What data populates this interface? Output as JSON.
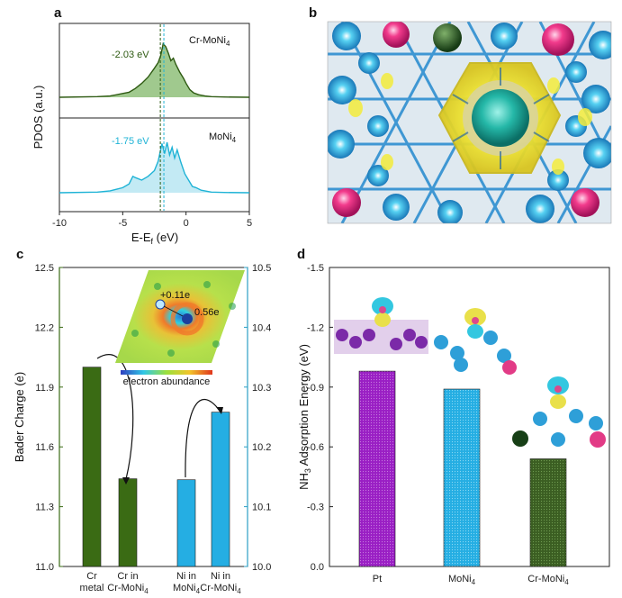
{
  "panels": {
    "a": "a",
    "b": "b",
    "c": "c",
    "d": "d"
  },
  "colors": {
    "green_dark": "#2e5a12",
    "green_fill": "#8fc07a",
    "cyan": "#1fb3d6",
    "cyan_fill": "#b9e6f2",
    "olive": "#3a6b14",
    "purple": "#9a1fc4",
    "blue_bar": "#25aee3",
    "dark_green_bar": "#3b5e22",
    "axis_left_c": "#3a6b14",
    "axis_right_c": "#2b9fc4"
  },
  "panel_b": {
    "image_icon": "charge-density-isosurface-top-view"
  },
  "chart_data": [
    {
      "panel": "a",
      "type": "area",
      "ylabel": "PDOS (a.u.)",
      "xlabel_main": "E-E",
      "xlabel_sub": "f",
      "xlabel_tail": " (eV)",
      "xlim": [
        -10,
        5
      ],
      "xticks": [
        "-10",
        "-5",
        "0",
        "5"
      ],
      "grid": false,
      "series": [
        {
          "name": "Cr-MoNi",
          "name_sub": "4",
          "d_band_center": "-2.03 eV",
          "d_band_value": -2.03,
          "x": [
            -10,
            -7,
            -6,
            -5,
            -4.5,
            -4,
            -3.5,
            -3,
            -2.5,
            -2.2,
            -2.0,
            -1.8,
            -1.6,
            -1.4,
            -1.2,
            -1.0,
            -0.8,
            -0.5,
            -0.2,
            0,
            0.3,
            0.6,
            1,
            1.5,
            2,
            3,
            5
          ],
          "y": [
            0.0,
            0.01,
            0.02,
            0.06,
            0.08,
            0.14,
            0.22,
            0.32,
            0.46,
            0.55,
            0.66,
            0.85,
            0.8,
            0.7,
            0.58,
            0.62,
            0.52,
            0.4,
            0.3,
            0.22,
            0.12,
            0.07,
            0.04,
            0.02,
            0.01,
            0.005,
            0.0
          ]
        },
        {
          "name": "MoNi",
          "name_sub": "4",
          "d_band_center": "-1.75 eV",
          "d_band_value": -1.75,
          "x": [
            -10,
            -7,
            -6,
            -5,
            -4.5,
            -4.2,
            -4,
            -3.5,
            -3,
            -2.5,
            -2.2,
            -1.9,
            -1.7,
            -1.5,
            -1.3,
            -1.1,
            -0.9,
            -0.7,
            -0.4,
            -0.1,
            0.2,
            0.5,
            0.8,
            1.2,
            2,
            3,
            5
          ],
          "y": [
            0.0,
            0.01,
            0.03,
            0.08,
            0.14,
            0.26,
            0.24,
            0.2,
            0.26,
            0.35,
            0.5,
            0.78,
            0.62,
            0.8,
            0.6,
            0.72,
            0.55,
            0.68,
            0.48,
            0.3,
            0.2,
            0.1,
            0.08,
            0.04,
            0.01,
            0.005,
            0.0
          ]
        }
      ]
    },
    {
      "panel": "c",
      "type": "bar",
      "ylabel_left": "Bader Charge (e)",
      "ylim_left": [
        11.0,
        12.5
      ],
      "yticks_left": [
        "11.0",
        "11.3",
        "11.6",
        "11.9",
        "12.2",
        "12.5"
      ],
      "ylim_right": [
        10.0,
        10.5
      ],
      "yticks_right": [
        "10.0",
        "10.1",
        "10.2",
        "10.3",
        "10.4",
        "10.5"
      ],
      "grid": false,
      "categories": [
        {
          "line1": "Cr",
          "line2": "metal",
          "sub": "",
          "axis": "left",
          "value": 12.0
        },
        {
          "line1": "Cr in",
          "line2": "Cr-MoNi",
          "sub": "4",
          "axis": "left",
          "value": 11.44
        },
        {
          "line1": "Ni in",
          "line2": "MoNi",
          "sub": "4",
          "axis": "right",
          "value": 10.145
        },
        {
          "line1": "Ni in",
          "line2": "Cr-MoNi",
          "sub": "4",
          "axis": "right",
          "value": 10.258
        }
      ],
      "inset": {
        "charge_a": "+0.11e",
        "charge_b": "0.56e",
        "colorbar_label": "electron abundance"
      }
    },
    {
      "panel": "d",
      "type": "bar",
      "ylabel_main": "NH",
      "ylabel_sub": "3",
      "ylabel_tail": " Adsorption Energy (eV)",
      "ylim": [
        0.0,
        -1.5
      ],
      "yticks": [
        "0.0",
        "-0.3",
        "-0.6",
        "-0.9",
        "-1.2",
        "-1.5"
      ],
      "grid": false,
      "categories": [
        {
          "label": "Pt",
          "sub": "",
          "value": -0.98
        },
        {
          "label": "MoNi",
          "sub": "4",
          "value": -0.89
        },
        {
          "label": "Cr-MoNi",
          "sub": "4",
          "value": -0.54
        }
      ]
    }
  ]
}
